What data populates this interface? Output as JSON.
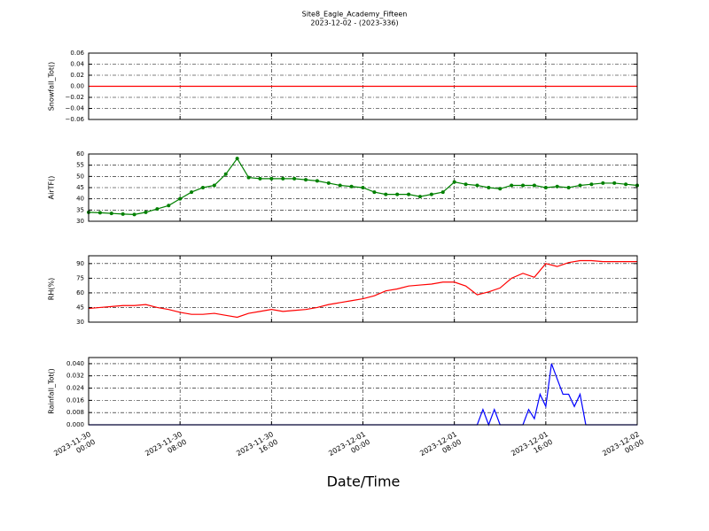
{
  "chart_data": [
    {
      "type": "line",
      "title": "Site8_Eagle_Academy_Fifteen",
      "subtitle": "2023-12-02 - (2023-336)",
      "ylabel": "Snowfall_Tot()",
      "color": "#ff0000",
      "markers": false,
      "grid": true,
      "x": [
        "2023-11-30 00:00",
        "2023-12-02 00:00"
      ],
      "values": [
        0,
        0
      ],
      "ylim": [
        -0.06,
        0.06
      ],
      "yticks": [
        {
          "value": -0.06,
          "label": "−0.06"
        },
        {
          "value": -0.04,
          "label": "−0.04"
        },
        {
          "value": -0.02,
          "label": "−0.02"
        },
        {
          "value": 0,
          "label": "0.00"
        },
        {
          "value": 0.02,
          "label": "0.02"
        },
        {
          "value": 0.04,
          "label": "0.04"
        },
        {
          "value": 0.06,
          "label": "0.06"
        }
      ]
    },
    {
      "type": "line",
      "ylabel": "AirTF()",
      "color": "#008000",
      "markers": true,
      "grid": true,
      "x": [
        "2023-11-30 00:00",
        "2023-11-30 01:00",
        "2023-11-30 02:00",
        "2023-11-30 03:00",
        "2023-11-30 04:00",
        "2023-11-30 05:00",
        "2023-11-30 06:00",
        "2023-11-30 07:00",
        "2023-11-30 08:00",
        "2023-11-30 09:00",
        "2023-11-30 10:00",
        "2023-11-30 11:00",
        "2023-11-30 12:00",
        "2023-11-30 13:00",
        "2023-11-30 14:00",
        "2023-11-30 15:00",
        "2023-11-30 16:00",
        "2023-11-30 17:00",
        "2023-11-30 18:00",
        "2023-11-30 19:00",
        "2023-11-30 20:00",
        "2023-11-30 21:00",
        "2023-11-30 22:00",
        "2023-11-30 23:00",
        "2023-12-01 00:00",
        "2023-12-01 01:00",
        "2023-12-01 02:00",
        "2023-12-01 03:00",
        "2023-12-01 04:00",
        "2023-12-01 05:00",
        "2023-12-01 06:00",
        "2023-12-01 07:00",
        "2023-12-01 08:00",
        "2023-12-01 09:00",
        "2023-12-01 10:00",
        "2023-12-01 11:00",
        "2023-12-01 12:00",
        "2023-12-01 13:00",
        "2023-12-01 14:00",
        "2023-12-01 15:00",
        "2023-12-01 16:00",
        "2023-12-01 17:00",
        "2023-12-01 18:00",
        "2023-12-01 19:00",
        "2023-12-01 20:00",
        "2023-12-01 21:00",
        "2023-12-01 22:00",
        "2023-12-01 23:00",
        "2023-12-02 00:00"
      ],
      "values": [
        34,
        33.8,
        33.5,
        33.2,
        33,
        34,
        35.5,
        37,
        40,
        43,
        45,
        46,
        51,
        58,
        49.5,
        49,
        49,
        49,
        49,
        48.5,
        48,
        47,
        46,
        45.5,
        45,
        43,
        42,
        42,
        42,
        41,
        42,
        43,
        47.5,
        46.5,
        46,
        45,
        44.5,
        46,
        46,
        46,
        45,
        45.5,
        45,
        46,
        46.5,
        47,
        47,
        46.5,
        46
      ],
      "ylim": [
        30,
        60
      ],
      "yticks": [
        30,
        35,
        40,
        45,
        50,
        55,
        60
      ]
    },
    {
      "type": "line",
      "ylabel": "RH(%)",
      "color": "#ff0000",
      "markers": false,
      "grid": true,
      "x": [
        "2023-11-30 00:00",
        "2023-11-30 01:00",
        "2023-11-30 02:00",
        "2023-11-30 03:00",
        "2023-11-30 04:00",
        "2023-11-30 05:00",
        "2023-11-30 06:00",
        "2023-11-30 07:00",
        "2023-11-30 08:00",
        "2023-11-30 09:00",
        "2023-11-30 10:00",
        "2023-11-30 11:00",
        "2023-11-30 12:00",
        "2023-11-30 13:00",
        "2023-11-30 14:00",
        "2023-11-30 15:00",
        "2023-11-30 16:00",
        "2023-11-30 17:00",
        "2023-11-30 18:00",
        "2023-11-30 19:00",
        "2023-11-30 20:00",
        "2023-11-30 21:00",
        "2023-11-30 22:00",
        "2023-11-30 23:00",
        "2023-12-01 00:00",
        "2023-12-01 01:00",
        "2023-12-01 02:00",
        "2023-12-01 03:00",
        "2023-12-01 04:00",
        "2023-12-01 05:00",
        "2023-12-01 06:00",
        "2023-12-01 07:00",
        "2023-12-01 08:00",
        "2023-12-01 09:00",
        "2023-12-01 10:00",
        "2023-12-01 11:00",
        "2023-12-01 12:00",
        "2023-12-01 13:00",
        "2023-12-01 14:00",
        "2023-12-01 15:00",
        "2023-12-01 16:00",
        "2023-12-01 17:00",
        "2023-12-01 18:00",
        "2023-12-01 19:00",
        "2023-12-01 20:00",
        "2023-12-01 21:00",
        "2023-12-01 22:00",
        "2023-12-01 23:00",
        "2023-12-02 00:00"
      ],
      "values": [
        44,
        45,
        46,
        47,
        47,
        48,
        45,
        43,
        40,
        38,
        38,
        39,
        37,
        35,
        39,
        41,
        43,
        41,
        42,
        43,
        45,
        48,
        50,
        52,
        54,
        57,
        62,
        64,
        67,
        68,
        69,
        71,
        71,
        67,
        58,
        61,
        65,
        75,
        80,
        76,
        90,
        87,
        91,
        93,
        93,
        92,
        92,
        92,
        92
      ],
      "ylim": [
        30,
        98
      ],
      "yticks": [
        30,
        45,
        60,
        75,
        90
      ]
    },
    {
      "type": "line",
      "ylabel": "Rainfall_Tot()",
      "xlabel": "Date/Time",
      "color": "#0000ff",
      "markers": false,
      "grid": true,
      "x": [
        "2023-11-30 00:00",
        "2023-12-01 10:00",
        "2023-12-01 10:30",
        "2023-12-01 11:00",
        "2023-12-01 11:30",
        "2023-12-01 12:00",
        "2023-12-01 14:00",
        "2023-12-01 14:30",
        "2023-12-01 15:00",
        "2023-12-01 15:30",
        "2023-12-01 16:00",
        "2023-12-01 16:30",
        "2023-12-01 17:00",
        "2023-12-01 17:30",
        "2023-12-01 18:00",
        "2023-12-01 18:30",
        "2023-12-01 19:00",
        "2023-12-01 19:30",
        "2023-12-02 00:00"
      ],
      "values": [
        0,
        0,
        0.01,
        0,
        0.01,
        0,
        0,
        0.01,
        0.004,
        0.02,
        0.012,
        0.04,
        0.03,
        0.02,
        0.02,
        0.012,
        0.02,
        0,
        0
      ],
      "xlim": [
        "2023-11-30 00:00",
        "2023-12-02 00:00"
      ],
      "xticks": [
        {
          "value": "2023-11-30 00:00",
          "label": "2023-11-30\n00:00"
        },
        {
          "value": "2023-11-30 08:00",
          "label": "2023-11-30\n08:00"
        },
        {
          "value": "2023-11-30 16:00",
          "label": "2023-11-30\n16:00"
        },
        {
          "value": "2023-12-01 00:00",
          "label": "2023-12-01\n00:00"
        },
        {
          "value": "2023-12-01 08:00",
          "label": "2023-12-01\n08:00"
        },
        {
          "value": "2023-12-01 16:00",
          "label": "2023-12-01\n16:00"
        },
        {
          "value": "2023-12-02 00:00",
          "label": "2023-12-02\n00:00"
        }
      ],
      "ylim": [
        0,
        0.044
      ],
      "yticks": [
        {
          "value": 0,
          "label": "0.000"
        },
        {
          "value": 0.008,
          "label": "0.008"
        },
        {
          "value": 0.016,
          "label": "0.016"
        },
        {
          "value": 0.024,
          "label": "0.024"
        },
        {
          "value": 0.032,
          "label": "0.032"
        },
        {
          "value": 0.04,
          "label": "0.040"
        }
      ]
    }
  ]
}
